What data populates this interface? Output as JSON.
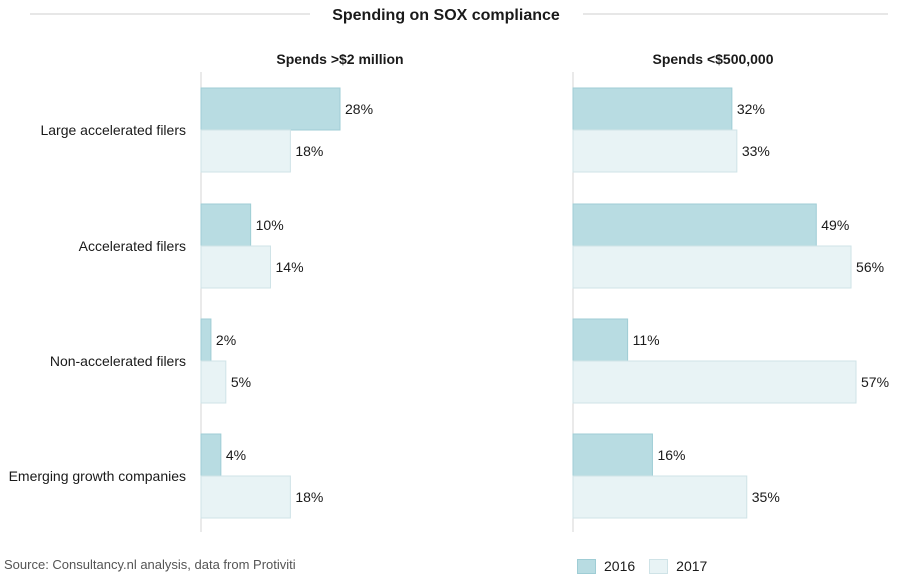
{
  "chart_data": {
    "type": "bar",
    "orientation": "horizontal",
    "title": "Spending on SOX compliance",
    "categories": [
      "Large accelerated filers",
      "Accelerated filers",
      "Non-accelerated filers",
      "Emerging growth companies"
    ],
    "panels": [
      {
        "title": "Spends >$2 million",
        "series": [
          {
            "name": "2016",
            "values": [
              28,
              10,
              2,
              4
            ]
          },
          {
            "name": "2017",
            "values": [
              18,
              14,
              5,
              18
            ]
          }
        ]
      },
      {
        "title": "Spends <$500,000",
        "series": [
          {
            "name": "2016",
            "values": [
              32,
              49,
              11,
              16
            ]
          },
          {
            "name": "2017",
            "values": [
              33,
              56,
              57,
              35
            ]
          }
        ]
      }
    ],
    "value_suffix": "%",
    "xlim": [
      0,
      57
    ],
    "grid": false,
    "legend_position": "bottom-right",
    "colors": {
      "2016": "#b8dce2",
      "2017": "#e8f3f5",
      "border_2016": "#9fcdd5",
      "border_2017": "#cfe3e7"
    }
  },
  "source": "Source: Consultancy.nl analysis, data from Protiviti",
  "legend": {
    "items": [
      "2016",
      "2017"
    ]
  }
}
